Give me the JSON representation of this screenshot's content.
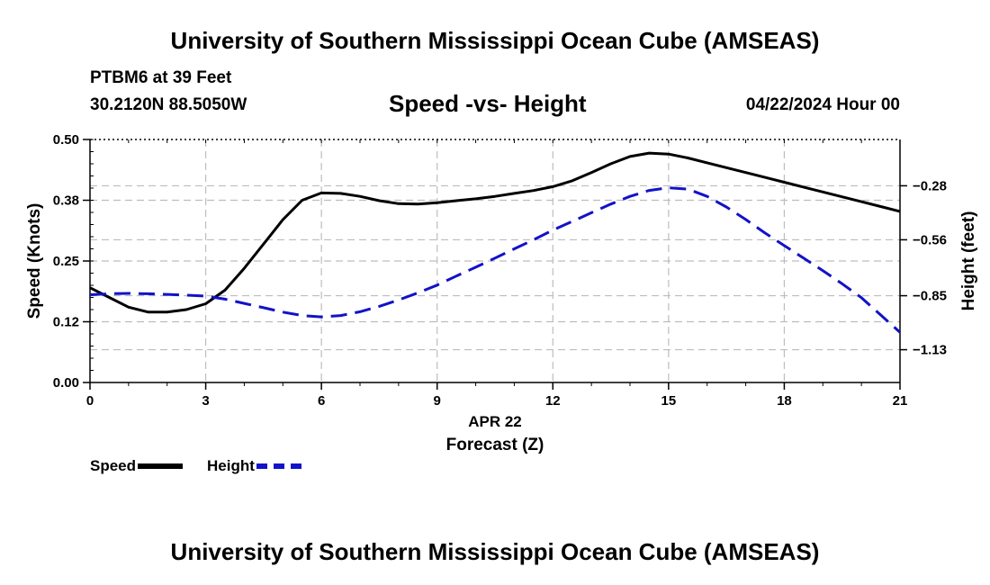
{
  "header": {
    "title": "University of Southern Mississippi Ocean Cube (AMSEAS)",
    "station": "PTBM6 at 39 Feet",
    "coords": "30.2120N  88.5050W",
    "chart_title": "Speed -vs- Height",
    "datetime": "04/22/2024 Hour 00"
  },
  "footer": {
    "title": "University of Southern Mississippi Ocean Cube (AMSEAS)"
  },
  "legend": {
    "speed_label": "Speed",
    "height_label": "Height",
    "speed_color": "#000000",
    "height_color": "#1212c8"
  },
  "chart_data": {
    "type": "line",
    "title": "Speed -vs- Height",
    "xlabel": "Forecast (Z)",
    "xsublabel": "APR 22",
    "ylabel": "Speed (Knots)",
    "y2label": "Height (feet)",
    "xlim": [
      0,
      21
    ],
    "ylim": [
      0,
      0.5
    ],
    "y2lim": [
      -1.3,
      -0.04
    ],
    "xticks": [
      0,
      3,
      6,
      9,
      12,
      15,
      18,
      21
    ],
    "xtick_labels": [
      "0",
      "3",
      "6",
      "9",
      "12",
      "15",
      "18",
      "21"
    ],
    "yticks": [
      0.0,
      0.125,
      0.25,
      0.375,
      0.5
    ],
    "ytick_labels": [
      "0.00",
      "0.12",
      "0.25",
      "0.38",
      "0.50"
    ],
    "y2ticks": [
      -1.13,
      -0.85,
      -0.56,
      -0.28
    ],
    "y2tick_labels": [
      "−1.13",
      "−0.85",
      "−0.56",
      "−0.28"
    ],
    "grid": true,
    "series": [
      {
        "name": "Speed",
        "axis": "left",
        "style": "solid",
        "color": "#000000",
        "x": [
          0,
          0.5,
          1,
          1.5,
          2,
          2.5,
          3,
          3.5,
          4,
          4.5,
          5,
          5.5,
          6,
          6.5,
          7,
          7.5,
          8,
          8.5,
          9,
          9.5,
          10,
          10.5,
          11,
          11.5,
          12,
          12.5,
          13,
          13.5,
          14,
          14.5,
          15,
          15.5,
          16,
          16.5,
          17,
          17.5,
          18,
          18.5,
          19,
          19.5,
          20,
          20.5,
          21
        ],
        "values": [
          0.195,
          0.175,
          0.155,
          0.145,
          0.145,
          0.15,
          0.162,
          0.19,
          0.235,
          0.285,
          0.335,
          0.375,
          0.39,
          0.389,
          0.383,
          0.374,
          0.368,
          0.367,
          0.37,
          0.374,
          0.378,
          0.383,
          0.389,
          0.395,
          0.403,
          0.415,
          0.432,
          0.45,
          0.465,
          0.472,
          0.47,
          0.462,
          0.452,
          0.442,
          0.432,
          0.422,
          0.412,
          0.402,
          0.392,
          0.382,
          0.372,
          0.362,
          0.352
        ]
      },
      {
        "name": "Height",
        "axis": "right",
        "style": "dashed",
        "color": "#1212c8",
        "x": [
          0,
          0.5,
          1,
          1.5,
          2,
          2.5,
          3,
          3.5,
          4,
          4.5,
          5,
          5.5,
          6,
          6.5,
          7,
          7.5,
          8,
          8.5,
          9,
          9.5,
          10,
          10.5,
          11,
          11.5,
          12,
          12.5,
          13,
          13.5,
          14,
          14.5,
          15,
          15.5,
          16,
          16.5,
          17,
          17.5,
          18,
          18.5,
          19,
          19.5,
          20,
          20.5,
          21
        ],
        "values": [
          -0.845,
          -0.84,
          -0.838,
          -0.84,
          -0.843,
          -0.847,
          -0.852,
          -0.868,
          -0.89,
          -0.912,
          -0.935,
          -0.953,
          -0.96,
          -0.953,
          -0.933,
          -0.905,
          -0.872,
          -0.835,
          -0.795,
          -0.748,
          -0.702,
          -0.655,
          -0.607,
          -0.56,
          -0.51,
          -0.465,
          -0.42,
          -0.375,
          -0.335,
          -0.304,
          -0.29,
          -0.297,
          -0.335,
          -0.39,
          -0.455,
          -0.525,
          -0.59,
          -0.655,
          -0.72,
          -0.788,
          -0.86,
          -0.95,
          -1.04
        ]
      }
    ]
  }
}
